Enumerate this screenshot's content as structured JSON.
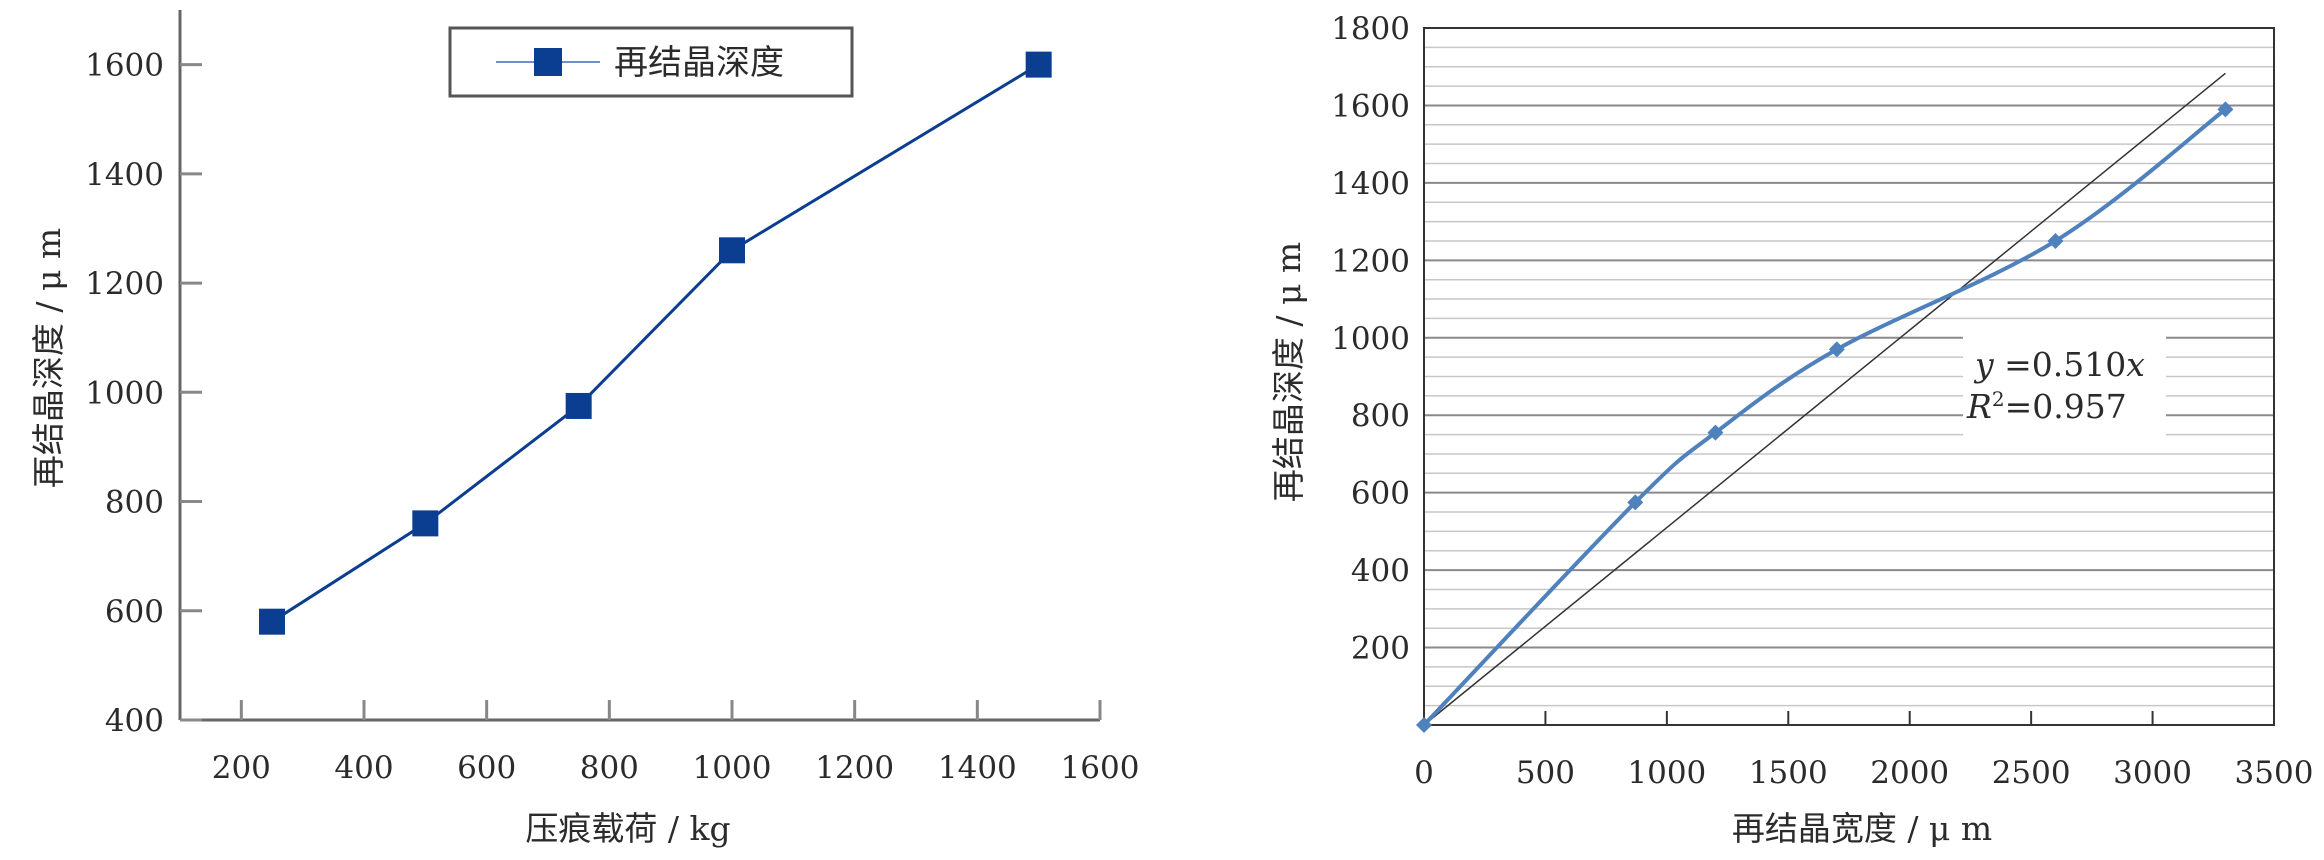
{
  "chart_data": [
    {
      "type": "line",
      "xlabel": "压痕载荷 / kg",
      "ylabel": "再结晶深度 / μ m",
      "xlim": [
        100,
        1600
      ],
      "ylim": [
        400,
        1700
      ],
      "xticks": [
        200,
        400,
        600,
        800,
        1000,
        1200,
        1400,
        1600
      ],
      "yticks": [
        400,
        600,
        800,
        1000,
        1200,
        1400,
        1600
      ],
      "grid": false,
      "legend_position": "top-center",
      "series": [
        {
          "name": "再结晶深度",
          "color": "#0b3d91",
          "marker": "square",
          "x": [
            250,
            500,
            750,
            1000,
            1500
          ],
          "y": [
            580,
            760,
            975,
            1260,
            1600
          ]
        }
      ]
    },
    {
      "type": "scatter",
      "xlabel": "再结晶宽度 / μ m",
      "ylabel": "再结晶深度 / μ m",
      "xlim": [
        0,
        3500
      ],
      "ylim": [
        0,
        1800
      ],
      "xticks": [
        0,
        500,
        1000,
        1500,
        2000,
        2500,
        3000,
        3500
      ],
      "yticks": [
        200,
        400,
        600,
        800,
        1000,
        1200,
        1400,
        1600,
        1800
      ],
      "grid": true,
      "series": [
        {
          "color": "#4f81bd",
          "marker": "diamond",
          "smooth": true,
          "x": [
            0,
            870,
            1200,
            1700,
            2600,
            3300
          ],
          "y": [
            0,
            575,
            755,
            970,
            1250,
            1590
          ]
        }
      ],
      "trendline": {
        "color": "#333333",
        "slope": 0.51,
        "x_range": [
          0,
          3300
        ],
        "equation_parts": {
          "y": "y",
          "eq": " =0.510",
          "x": "x"
        },
        "r2_parts": {
          "r": "R",
          "sup": "2",
          "eq": "=0.957"
        }
      }
    }
  ]
}
